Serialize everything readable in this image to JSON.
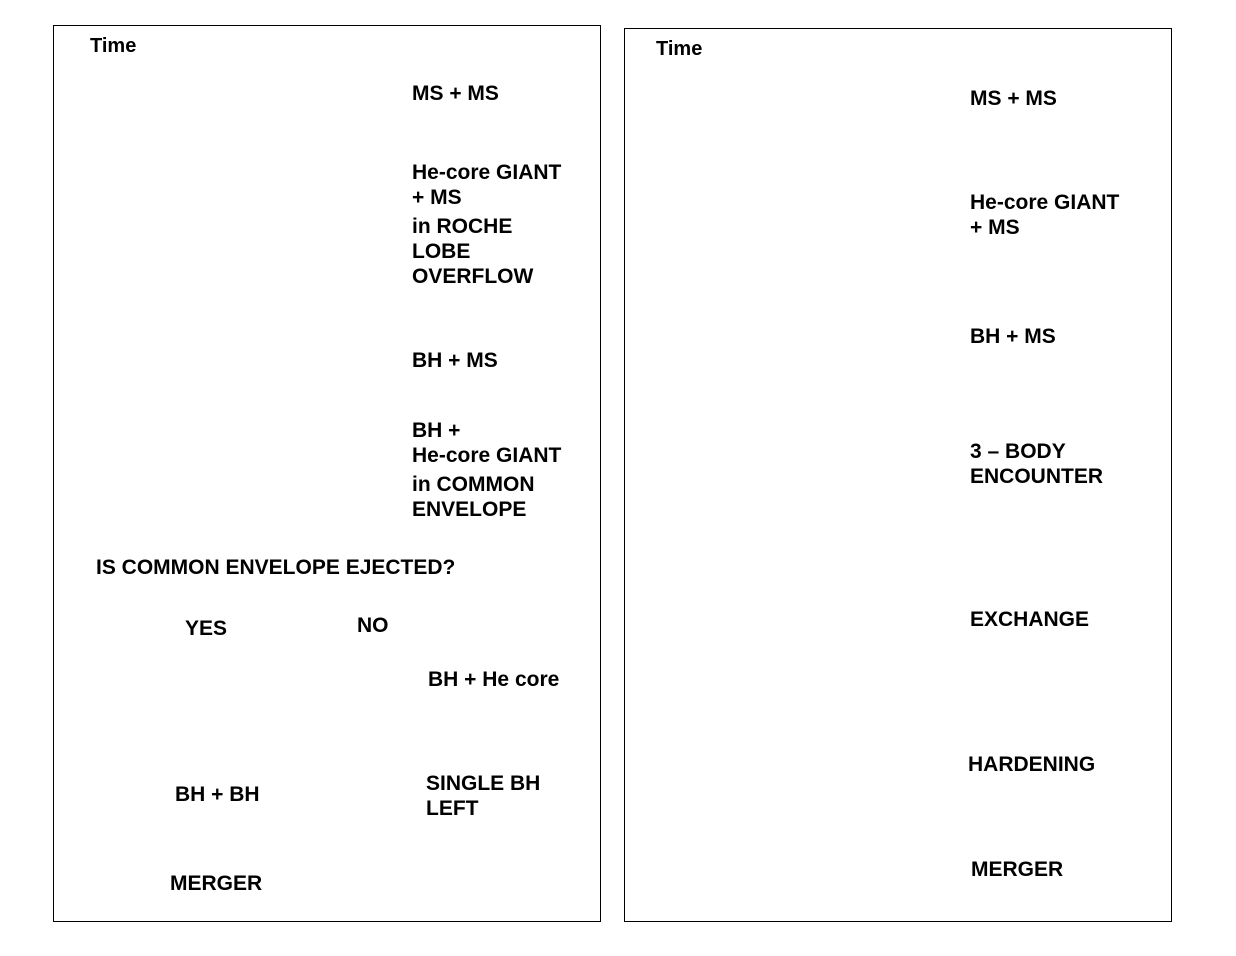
{
  "left_panel": {
    "time_label": "Time",
    "stages": {
      "ms_ms": [
        "MS + MS"
      ],
      "roche": [
        "He-core GIANT",
        "+ MS",
        "in ROCHE",
        "LOBE",
        "OVERFLOW"
      ],
      "bh_ms": [
        "BH + MS"
      ],
      "common_envelope": [
        "BH +",
        "He-core GIANT",
        "in COMMON",
        "ENVELOPE"
      ],
      "question": "IS COMMON ENVELOPE EJECTED?",
      "yes": "YES",
      "no": "NO",
      "bh_he_core": "BH + He core",
      "bh_bh": "BH + BH",
      "single_bh": [
        "SINGLE BH",
        "LEFT"
      ],
      "merger": "MERGER"
    }
  },
  "right_panel": {
    "time_label": "Time",
    "stages": {
      "ms_ms": [
        "MS + MS"
      ],
      "giant_ms": [
        "He-core GIANT",
        "+ MS"
      ],
      "bh_ms": [
        "BH + MS"
      ],
      "three_body": [
        "3 –  BODY",
        "ENCOUNTER"
      ],
      "exchange": "EXCHANGE",
      "hardening": "HARDENING",
      "merger": "MERGER"
    }
  },
  "colors": {
    "ms_star": "#6c7cf0",
    "he_core": "#2226d8",
    "giant_envelope": "#ff9a00",
    "black_hole": "#000000"
  }
}
